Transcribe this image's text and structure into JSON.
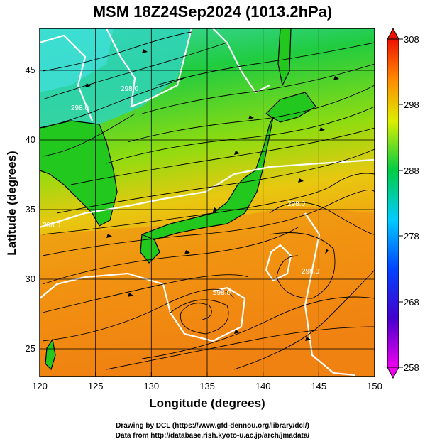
{
  "title": "MSM 18Z24Sep2024 (1013.2hPa)",
  "xlabel": "Longitude (degrees)",
  "ylabel": "Latitude  (degrees)",
  "credits": {
    "line1": "Drawing by DCL (https://www.gfd-dennou.org/library/dcl/)",
    "line2": "Data from http://database.rish.kyoto-u.ac.jp/arch/jmadata/"
  },
  "map": {
    "lon_range": [
      120,
      150
    ],
    "lat_range": [
      22.5,
      47.5
    ],
    "lon_ticks": [
      "120",
      "125",
      "130",
      "135",
      "140",
      "145",
      "150"
    ],
    "lat_ticks": [
      "25",
      "30",
      "35",
      "40",
      "45"
    ],
    "contour_labels": [
      "298.0",
      "298.0",
      "298.0",
      "298.0",
      "298.0",
      "298.0"
    ]
  },
  "colorbar": {
    "min": 258,
    "max": 308,
    "ticks": [
      "308",
      "298",
      "288",
      "278",
      "268",
      "258"
    ]
  },
  "colors": {
    "cool": "#2ad4d4",
    "green": "#10c010",
    "yellow_green": "#a8e000",
    "warm": "#f0a010",
    "orange": "#ee7a12",
    "contour": "#ffffff",
    "streamline": "#000000"
  }
}
